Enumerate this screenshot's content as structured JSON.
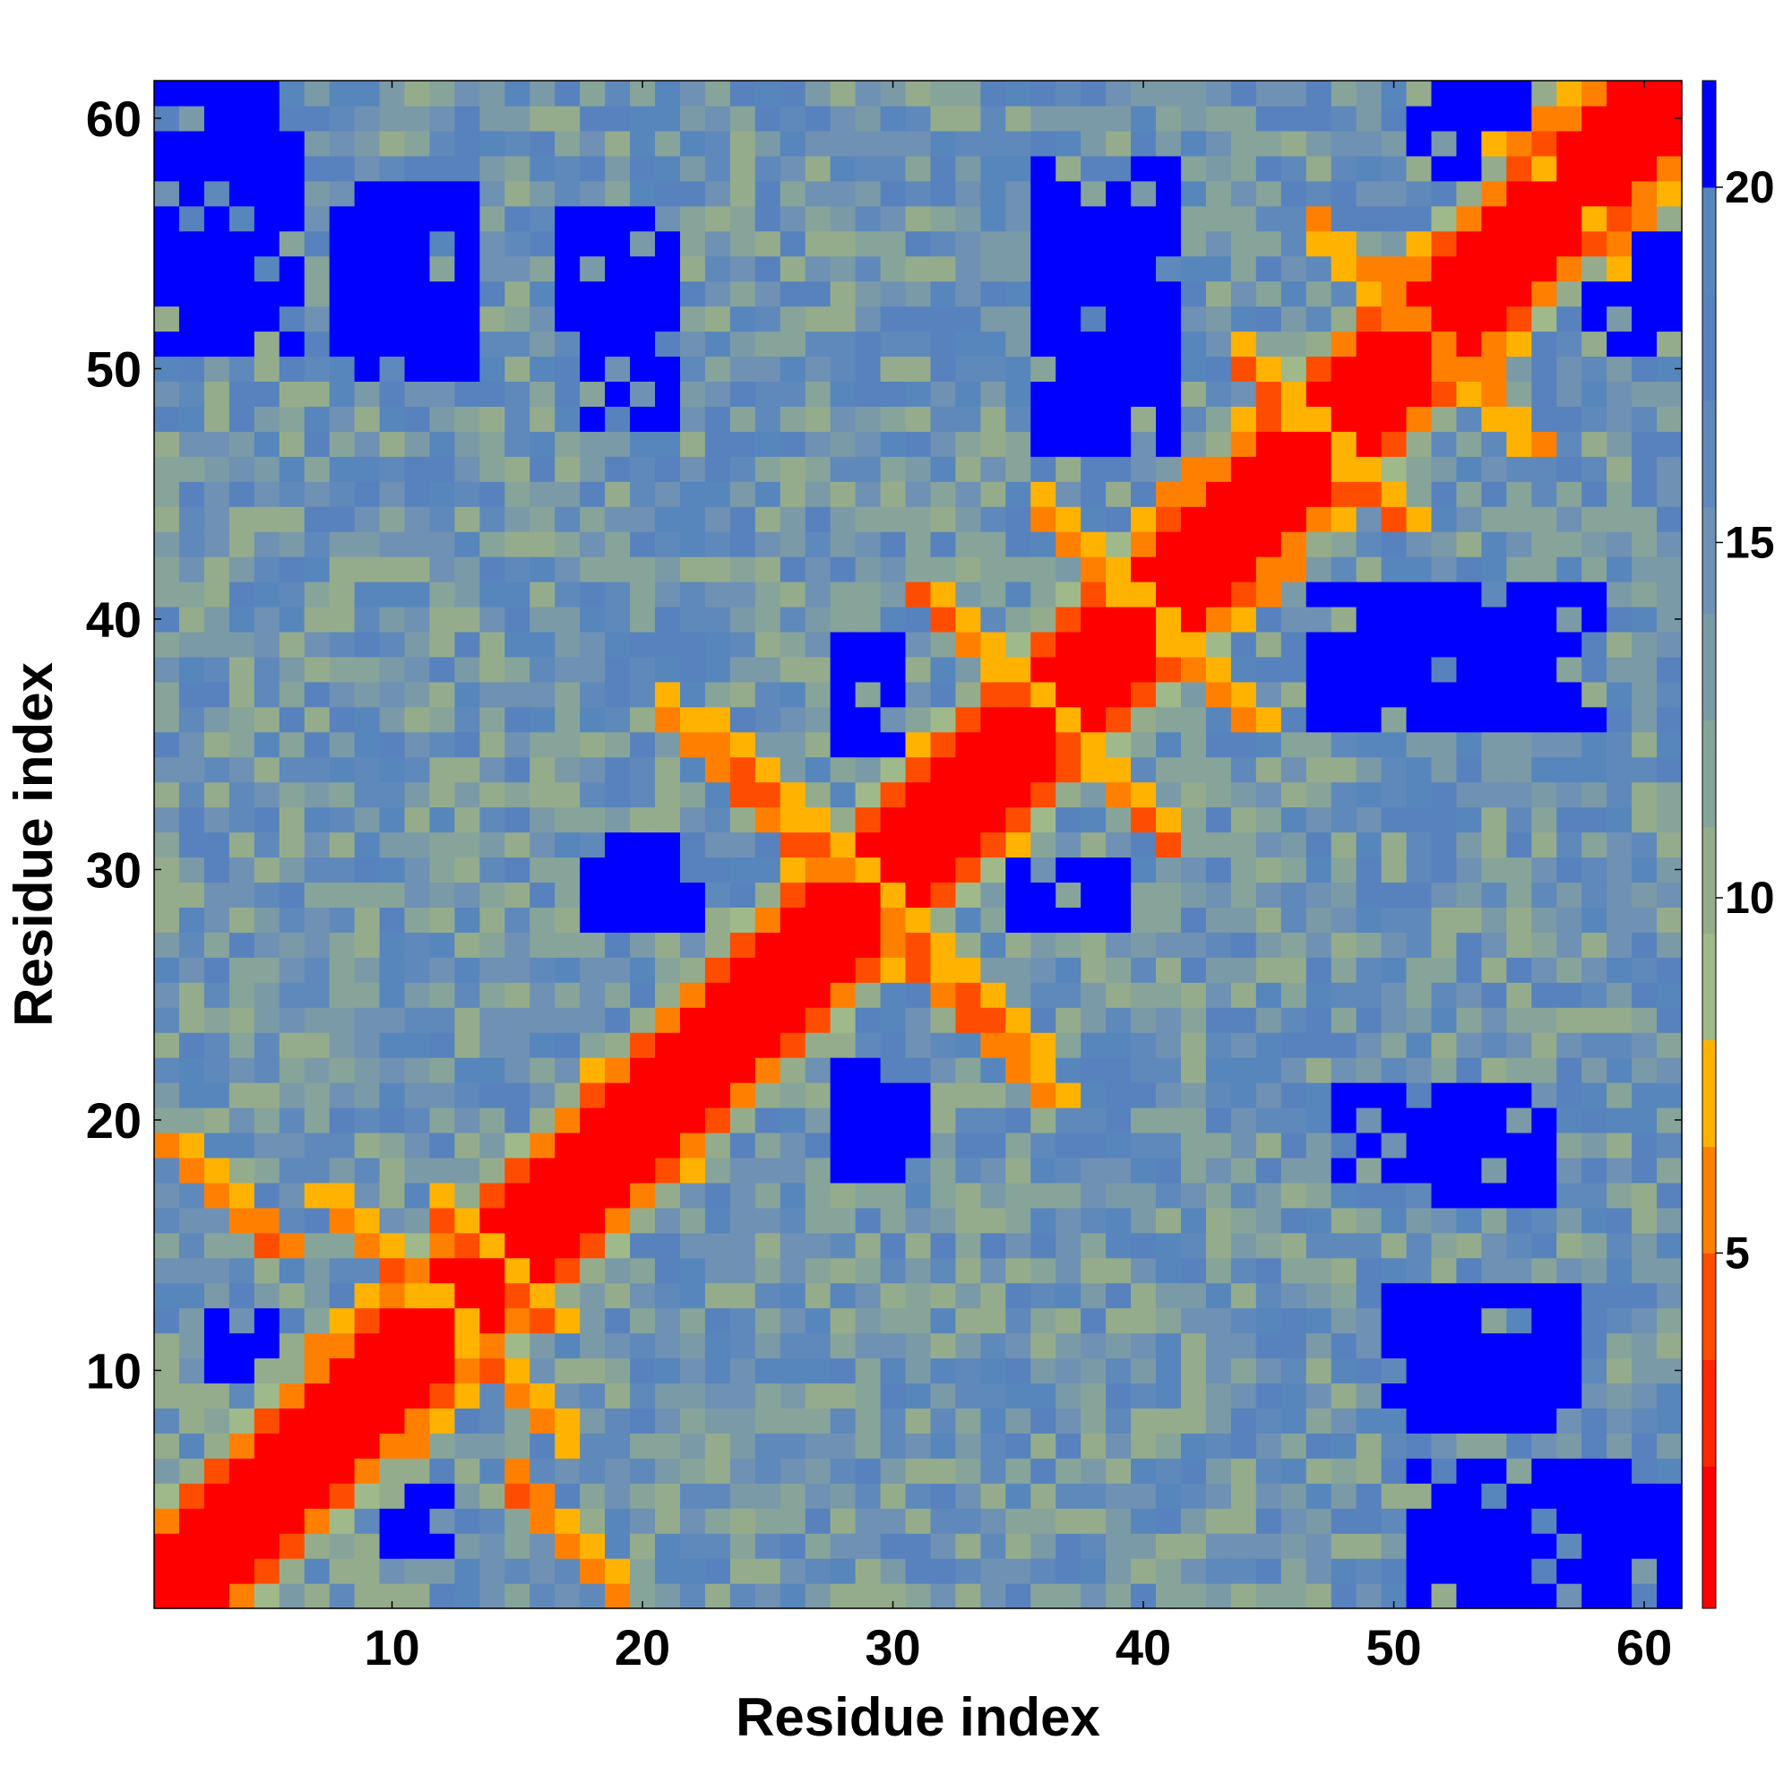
{
  "chart_data": {
    "type": "heatmap",
    "title": "",
    "xlabel": "Residue index",
    "ylabel": "Residue index",
    "n_residues": 61,
    "xlim": [
      0.5,
      61.5
    ],
    "ylim": [
      0.5,
      61.5
    ],
    "x_ticks": [
      10,
      20,
      30,
      40,
      50,
      60
    ],
    "y_ticks": [
      10,
      20,
      30,
      40,
      50,
      60
    ],
    "colorbar": {
      "ticks": [
        5,
        10,
        15,
        20
      ],
      "range": [
        0,
        21.5
      ],
      "levels": [
        {
          "max": 2,
          "color": "#ff0000"
        },
        {
          "max": 3.5,
          "color": "#ff2600"
        },
        {
          "max": 5,
          "color": "#ff4d00"
        },
        {
          "max": 6.5,
          "color": "#ff8000"
        },
        {
          "max": 8,
          "color": "#ffb300"
        },
        {
          "max": 9.5,
          "color": "#a0b98a"
        },
        {
          "max": 11,
          "color": "#94ac8c"
        },
        {
          "max": 12.5,
          "color": "#87a49a"
        },
        {
          "max": 14,
          "color": "#7b9aa7"
        },
        {
          "max": 15.5,
          "color": "#6f91b3"
        },
        {
          "max": 17,
          "color": "#5f89bb"
        },
        {
          "max": 18.5,
          "color": "#5882bd"
        },
        {
          "max": 20,
          "color": "#5786bd"
        },
        {
          "max": 21.5,
          "color": "#0000ff"
        }
      ]
    },
    "contact_segments": [
      {
        "i0": 7,
        "j0": 17,
        "len": 6
      },
      {
        "i0": 1,
        "j0": 19,
        "len": 5
      },
      {
        "i0": 12,
        "j0": 16,
        "len": 5
      },
      {
        "i0": 21,
        "j0": 36,
        "len": 6
      },
      {
        "i0": 23,
        "j0": 35,
        "len": 6
      },
      {
        "i0": 31,
        "j0": 41,
        "len": 7
      },
      {
        "i0": 36,
        "j0": 44,
        "len": 6
      },
      {
        "i0": 45,
        "j0": 49,
        "len": 6
      },
      {
        "i0": 48,
        "j0": 54,
        "len": 8
      },
      {
        "i0": 54,
        "j0": 59,
        "len": 3
      }
    ],
    "far_blocks": [
      {
        "i": [
          1,
          6
        ],
        "j": [
          51,
          61
        ]
      },
      {
        "i": [
          8,
          13
        ],
        "j": [
          51,
          57
        ]
      },
      {
        "i": [
          18,
          21
        ],
        "j": [
          48,
          55
        ]
      },
      {
        "i": [
          37,
          40
        ],
        "j": [
          50,
          56
        ]
      },
      {
        "i": [
          54,
          58
        ],
        "j": [
          36,
          41
        ]
      },
      {
        "i": [
          47,
          53
        ],
        "j": [
          36,
          41
        ]
      },
      {
        "i": [
          50,
          56
        ],
        "j": [
          8,
          13
        ]
      },
      {
        "i": [
          52,
          56
        ],
        "j": [
          17,
          21
        ]
      },
      {
        "i": [
          28,
          30
        ],
        "j": [
          18,
          22
        ]
      },
      {
        "i": [
          28,
          30
        ],
        "j": [
          35,
          39
        ]
      },
      {
        "i": [
          1,
          6
        ],
        "j": [
          58,
          61
        ]
      },
      {
        "i": [
          10,
          12
        ],
        "j": [
          3,
          5
        ]
      },
      {
        "i": [
          19,
          21
        ],
        "j": [
          29,
          31
        ]
      },
      {
        "i": [
          51,
          56
        ],
        "j": [
          58,
          61
        ]
      },
      {
        "i": [
          40,
          41
        ],
        "j": [
          51,
          58
        ]
      },
      {
        "i": [
          38,
          39
        ],
        "j": [
          28,
          30
        ]
      }
    ]
  }
}
